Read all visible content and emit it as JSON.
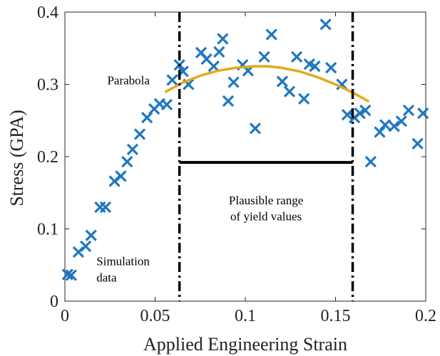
{
  "chart_data": {
    "type": "scatter",
    "xlabel": "Applied Engineering Strain",
    "ylabel": "Stress (GPA)",
    "xlim": [
      0,
      0.2
    ],
    "ylim": [
      0,
      0.4
    ],
    "xticks": [
      0,
      0.05,
      0.1,
      0.15,
      0.2
    ],
    "xtick_labels": [
      "0",
      "0.05",
      "0.1",
      "0.15",
      "0.2"
    ],
    "yticks": [
      0,
      0.1,
      0.2,
      0.3,
      0.4
    ],
    "ytick_labels": [
      "0",
      "0.1",
      "0.2",
      "0.3",
      "0.4"
    ],
    "grid": false,
    "colors": {
      "data": "#1f77bf",
      "parabola": "#e5a91a",
      "lines": "#000000"
    },
    "series": [
      {
        "marker": "x",
        "x": [
          0.0015,
          0.0035,
          0.0075,
          0.0115,
          0.0145,
          0.0195,
          0.0225,
          0.0275,
          0.031,
          0.0345,
          0.0375,
          0.0415,
          0.0455,
          0.0495,
          0.0525,
          0.0565,
          0.0595,
          0.0635,
          0.0655,
          0.0685,
          0.0755,
          0.0785,
          0.0825,
          0.0855,
          0.0875,
          0.0905,
          0.0935,
          0.0985,
          0.1015,
          0.1055,
          0.1105,
          0.1145,
          0.1205,
          0.1245,
          0.1285,
          0.1325,
          0.1355,
          0.1385,
          0.1445,
          0.1475,
          0.1535,
          0.1565,
          0.1605,
          0.1635,
          0.1665,
          0.1695,
          0.1745,
          0.1775,
          0.1825,
          0.1865,
          0.1905,
          0.1955,
          0.1985
        ],
        "y": [
          0.037,
          0.036,
          0.068,
          0.076,
          0.091,
          0.13,
          0.13,
          0.166,
          0.173,
          0.193,
          0.21,
          0.231,
          0.254,
          0.266,
          0.273,
          0.272,
          0.306,
          0.327,
          0.318,
          0.3,
          0.344,
          0.335,
          0.325,
          0.345,
          0.363,
          0.277,
          0.303,
          0.327,
          0.319,
          0.239,
          0.338,
          0.369,
          0.304,
          0.29,
          0.338,
          0.28,
          0.328,
          0.325,
          0.383,
          0.323,
          0.3,
          0.258,
          0.254,
          0.26,
          0.264,
          0.193,
          0.234,
          0.244,
          0.242,
          0.249,
          0.264,
          0.218,
          0.26
        ]
      }
    ],
    "parabola": {
      "label": "Parabola",
      "x": [
        0.056,
        0.065,
        0.075,
        0.085,
        0.095,
        0.105,
        0.112,
        0.12,
        0.13,
        0.14,
        0.15,
        0.16,
        0.168
      ],
      "y": [
        0.29,
        0.302,
        0.312,
        0.319,
        0.323,
        0.325,
        0.325,
        0.323,
        0.318,
        0.31,
        0.3,
        0.288,
        0.277
      ]
    },
    "vertical_lines": [
      0.0635,
      0.1595
    ],
    "range_bar": {
      "x_start": 0.0635,
      "x_end": 0.1595,
      "y": 0.192
    },
    "annotations": [
      {
        "text": "Parabola",
        "x": 0.0235,
        "y": 0.3
      },
      {
        "text": "Plausible range",
        "x": 0.1115,
        "y": 0.134
      },
      {
        "text": "of yield values",
        "x": 0.1115,
        "y": 0.112
      },
      {
        "text": "Simulation",
        "x": 0.0175,
        "y": 0.05
      },
      {
        "text": "data",
        "x": 0.0175,
        "y": 0.027
      }
    ]
  }
}
